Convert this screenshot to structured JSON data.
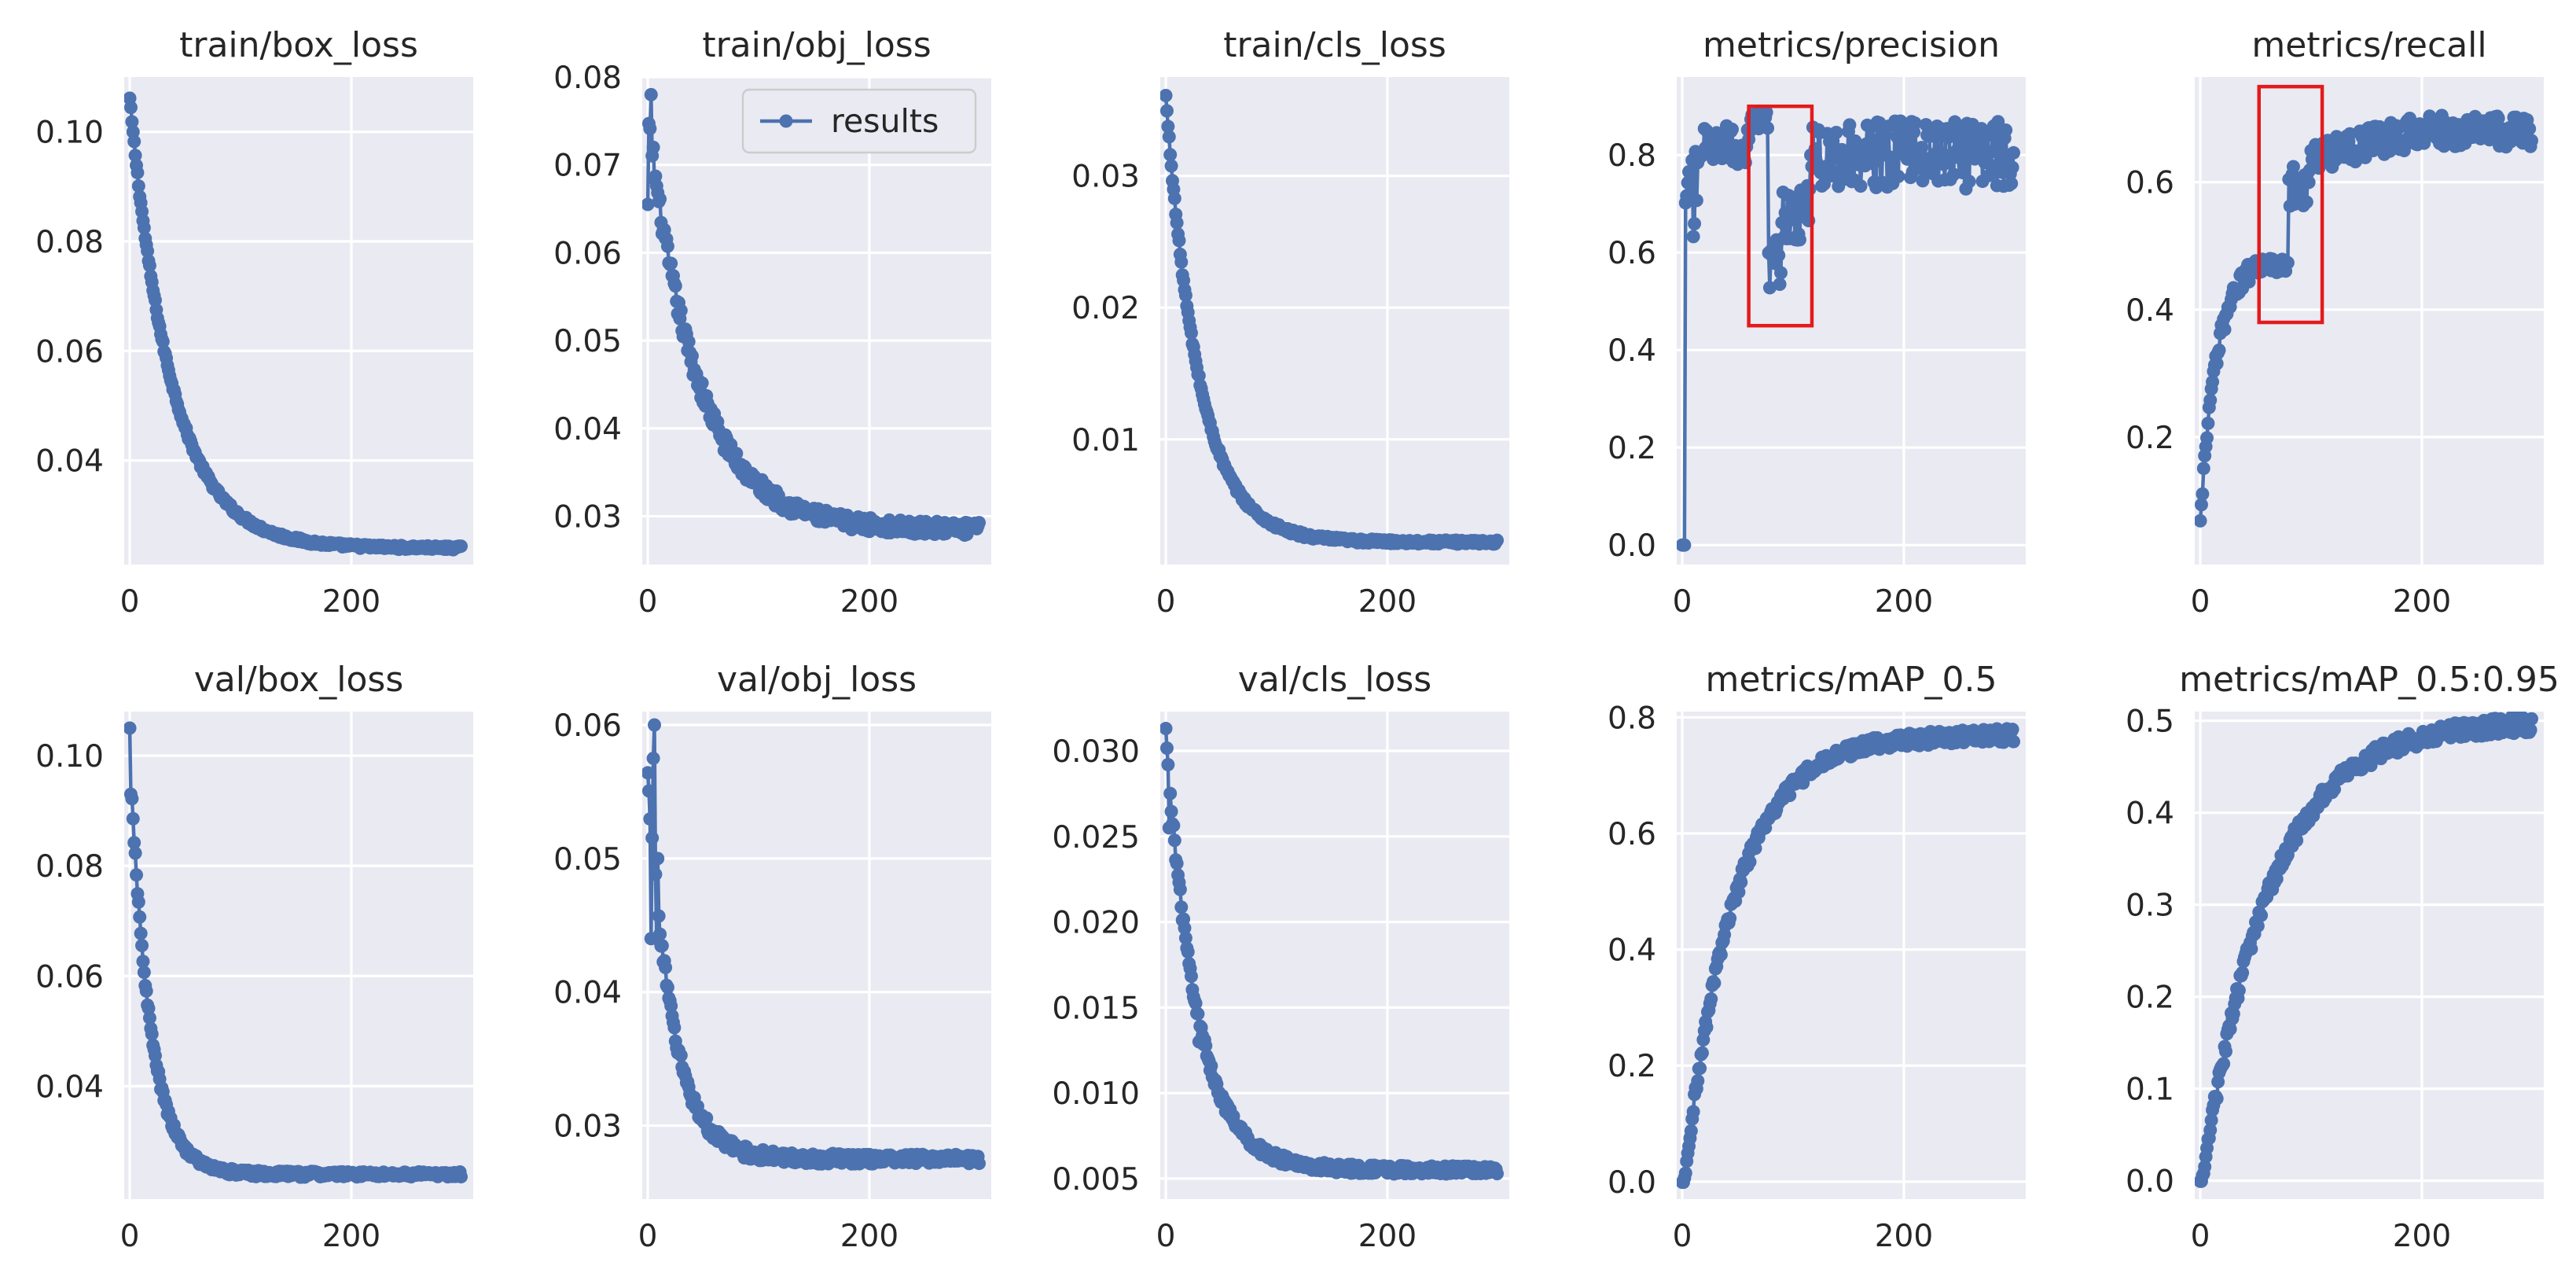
{
  "figure": {
    "background_color": "#ffffff",
    "axes_color": "#eaeaf2",
    "grid_color": "#ffffff",
    "series_color": "#4c72b0",
    "highlight_color": "#e41a1c",
    "legend_label": "results"
  },
  "chart_data": [
    {
      "type": "line",
      "title": "train/box_loss",
      "xlim": [
        -5,
        310
      ],
      "ylim": [
        0.021,
        0.11
      ],
      "xticks": [
        0,
        200
      ],
      "yticks": [
        0.04,
        0.06,
        0.08,
        0.1
      ],
      "ytick_labels": [
        "0.04",
        "0.06",
        "0.08",
        "0.10"
      ],
      "curve": {
        "start": 0.106,
        "end": 0.024,
        "tau": 38,
        "tail": 0.0,
        "noise": 0.0006,
        "spikes": []
      },
      "legend": false,
      "highlight": null
    },
    {
      "type": "line",
      "title": "train/obj_loss",
      "xlim": [
        -5,
        310
      ],
      "ylim": [
        0.0245,
        0.08
      ],
      "xticks": [
        0,
        200
      ],
      "yticks": [
        0.03,
        0.04,
        0.05,
        0.06,
        0.07,
        0.08
      ],
      "ytick_labels": [
        "0.03",
        "0.04",
        "0.05",
        "0.06",
        "0.07",
        "0.08"
      ],
      "curve": {
        "start": 0.075,
        "end": 0.0285,
        "tau": 45,
        "tail": 0.0,
        "noise": 0.0013,
        "spikes": [
          [
            3,
            0.078
          ],
          [
            5,
            0.072
          ],
          [
            0,
            0.0655
          ]
        ]
      },
      "legend": true,
      "highlight": null
    },
    {
      "type": "line",
      "title": "train/cls_loss",
      "xlim": [
        -5,
        310
      ],
      "ylim": [
        0.0005,
        0.0375
      ],
      "xticks": [
        0,
        200
      ],
      "yticks": [
        0.01,
        0.02,
        0.03
      ],
      "ytick_labels": [
        "0.01",
        "0.02",
        "0.03"
      ],
      "curve": {
        "start": 0.036,
        "end": 0.0022,
        "tau": 30,
        "tail": 0.0,
        "noise": 0.00025,
        "spikes": []
      },
      "legend": false,
      "highlight": null
    },
    {
      "type": "line",
      "title": "metrics/precision",
      "xlim": [
        -5,
        310
      ],
      "ylim": [
        -0.04,
        0.96
      ],
      "xticks": [
        0,
        200
      ],
      "yticks": [
        0,
        0.2,
        0.4,
        0.6,
        0.8
      ],
      "ytick_labels": [
        "0.0",
        "0.2",
        "0.4",
        "0.6",
        "0.8"
      ],
      "piecewise": "precision",
      "legend": false,
      "highlight": {
        "x0": 60,
        "x1": 117,
        "y0": 0.45,
        "y1": 0.9
      }
    },
    {
      "type": "line",
      "title": "metrics/recall",
      "xlim": [
        -5,
        310
      ],
      "ylim": [
        0.0,
        0.765
      ],
      "xticks": [
        0,
        200
      ],
      "yticks": [
        0.2,
        0.4,
        0.6
      ],
      "ytick_labels": [
        "0.2",
        "0.4",
        "0.6"
      ],
      "piecewise": "recall",
      "legend": false,
      "highlight": {
        "x0": 53,
        "x1": 110,
        "y0": 0.38,
        "y1": 0.75
      }
    },
    {
      "type": "line",
      "title": "val/box_loss",
      "xlim": [
        -5,
        310
      ],
      "ylim": [
        0.0195,
        0.108
      ],
      "xticks": [
        0,
        200
      ],
      "yticks": [
        0.04,
        0.06,
        0.08,
        0.1
      ],
      "ytick_labels": [
        "0.04",
        "0.06",
        "0.08",
        "0.10"
      ],
      "curve": {
        "start": 0.1,
        "end": 0.024,
        "tau": 18,
        "tail": 0.0,
        "noise": 0.0008,
        "spikes": [
          [
            0,
            0.105
          ],
          [
            1,
            0.093
          ]
        ]
      },
      "legend": false,
      "highlight": null
    },
    {
      "type": "line",
      "title": "val/obj_loss",
      "xlim": [
        -5,
        310
      ],
      "ylim": [
        0.0245,
        0.061
      ],
      "xticks": [
        0,
        200
      ],
      "yticks": [
        0.03,
        0.04,
        0.05,
        0.06
      ],
      "ytick_labels": [
        "0.03",
        "0.04",
        "0.05",
        "0.06"
      ],
      "curve": {
        "start": 0.056,
        "end": 0.0275,
        "tau": 22,
        "tail": 0.0,
        "noise": 0.0006,
        "spikes": [
          [
            3,
            0.044
          ],
          [
            6,
            0.06
          ],
          [
            8,
            0.044
          ],
          [
            5,
            0.0575
          ],
          [
            9,
            0.05
          ]
        ]
      },
      "legend": false,
      "highlight": null
    },
    {
      "type": "line",
      "title": "val/cls_loss",
      "xlim": [
        -5,
        310
      ],
      "ylim": [
        0.0038,
        0.0323
      ],
      "xticks": [
        0,
        200
      ],
      "yticks": [
        0.005,
        0.01,
        0.015,
        0.02,
        0.025,
        0.03
      ],
      "ytick_labels": [
        "0.005",
        "0.010",
        "0.015",
        "0.020",
        "0.025",
        "0.030"
      ],
      "curve": {
        "start": 0.031,
        "end": 0.0055,
        "tau": 28,
        "tail": 0.0,
        "noise": 0.0004,
        "spikes": [
          [
            3,
            0.0255
          ],
          [
            30,
            0.013
          ]
        ]
      },
      "legend": false,
      "highlight": null
    },
    {
      "type": "line",
      "title": "metrics/mAP_0.5",
      "xlim": [
        -5,
        310
      ],
      "ylim": [
        -0.03,
        0.81
      ],
      "xticks": [
        0,
        200
      ],
      "yticks": [
        0,
        0.2,
        0.4,
        0.6,
        0.8
      ],
      "ytick_labels": [
        "0.0",
        "0.2",
        "0.4",
        "0.6",
        "0.8"
      ],
      "rise": {
        "start": 0.0,
        "end": 0.77,
        "tau": 45,
        "delay": 2,
        "noise": 0.012
      },
      "legend": false,
      "highlight": null
    },
    {
      "type": "line",
      "title": "metrics/mAP_0.5:0.95",
      "xlim": [
        -5,
        310
      ],
      "ylim": [
        -0.02,
        0.51
      ],
      "xticks": [
        0,
        200
      ],
      "yticks": [
        0,
        0.1,
        0.2,
        0.3,
        0.4,
        0.5
      ],
      "ytick_labels": [
        "0.0",
        "0.1",
        "0.2",
        "0.3",
        "0.4",
        "0.5"
      ],
      "rise": {
        "start": 0.0,
        "end": 0.5,
        "tau": 60,
        "delay": 2,
        "noise": 0.009
      },
      "legend": false,
      "highlight": null
    }
  ]
}
